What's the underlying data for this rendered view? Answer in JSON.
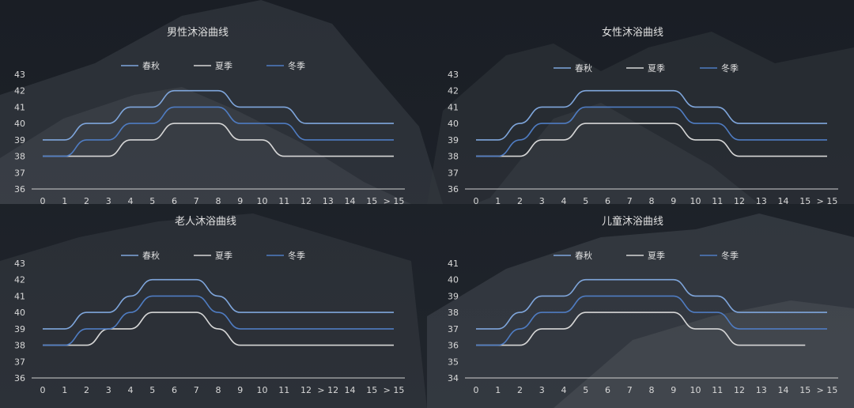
{
  "colors": {
    "background": "#1b1f26",
    "title": "#e0e0e0",
    "axis": "#d0d0d0",
    "tick_label": "#d8d8d8",
    "legend_text": "#e0e0e0"
  },
  "chart_data": [
    {
      "type": "line",
      "title": "男性沐浴曲线",
      "categories": [
        "0",
        "1",
        "2",
        "3",
        "4",
        "5",
        "6",
        "7",
        "8",
        "9",
        "10",
        "11",
        "12",
        "13",
        "14",
        "15",
        "> 15"
      ],
      "yticks": [
        36,
        37,
        38,
        39,
        40,
        41,
        42,
        43
      ],
      "ylim": [
        36,
        43
      ],
      "legend_position": "top-center",
      "grid": false,
      "series": [
        {
          "name": "春秋",
          "color": "#7fa6dc",
          "values": [
            39,
            39,
            40,
            40,
            41,
            41,
            42,
            42,
            42,
            41,
            41,
            41,
            40,
            40,
            40,
            40,
            40
          ]
        },
        {
          "name": "夏季",
          "color": "#d6d6d6",
          "values": [
            38,
            38,
            38,
            38,
            39,
            39,
            40,
            40,
            40,
            39,
            39,
            38,
            38,
            38,
            38,
            38,
            38
          ]
        },
        {
          "name": "冬季",
          "color": "#4f7cc2",
          "values": [
            38,
            38,
            39,
            39,
            40,
            40,
            41,
            41,
            41,
            40,
            40,
            40,
            39,
            39,
            39,
            39,
            39
          ]
        }
      ]
    },
    {
      "type": "line",
      "title": "女性沐浴曲线",
      "categories": [
        "0",
        "1",
        "2",
        "3",
        "4",
        "5",
        "6",
        "7",
        "8",
        "9",
        "10",
        "11",
        "12",
        "13",
        "14",
        "15",
        "> 15"
      ],
      "yticks": [
        36,
        37,
        38,
        39,
        40,
        41,
        42,
        43
      ],
      "ylim": [
        36,
        43
      ],
      "legend_position": "top-center",
      "grid": false,
      "series": [
        {
          "name": "春秋",
          "color": "#7fa6dc",
          "values": [
            39,
            39,
            40,
            41,
            41,
            42,
            42,
            42,
            42,
            42,
            41,
            41,
            40,
            40,
            40,
            40,
            40
          ]
        },
        {
          "name": "夏季",
          "color": "#d6d6d6",
          "values": [
            38,
            38,
            38,
            39,
            39,
            40,
            40,
            40,
            40,
            40,
            39,
            39,
            38,
            38,
            38,
            38,
            38
          ]
        },
        {
          "name": "冬季",
          "color": "#4f7cc2",
          "values": [
            38,
            38,
            39,
            40,
            40,
            41,
            41,
            41,
            41,
            41,
            40,
            40,
            39,
            39,
            39,
            39,
            39
          ]
        }
      ]
    },
    {
      "type": "line",
      "title": "老人沐浴曲线",
      "categories": [
        "0",
        "1",
        "2",
        "3",
        "4",
        "5",
        "6",
        "7",
        "8",
        "9",
        "10",
        "11",
        "12",
        "> 12",
        "14",
        "15",
        "> 15"
      ],
      "yticks": [
        36,
        37,
        38,
        39,
        40,
        41,
        42,
        43
      ],
      "ylim": [
        36,
        43
      ],
      "legend_position": "top-center",
      "grid": false,
      "series": [
        {
          "name": "春秋",
          "color": "#7fa6dc",
          "values": [
            39,
            39,
            40,
            40,
            41,
            42,
            42,
            42,
            41,
            40,
            40,
            40,
            40,
            40,
            40,
            40,
            40
          ]
        },
        {
          "name": "夏季",
          "color": "#d6d6d6",
          "values": [
            38,
            38,
            38,
            39,
            39,
            40,
            40,
            40,
            39,
            38,
            38,
            38,
            38,
            38,
            38,
            38,
            38
          ]
        },
        {
          "name": "冬季",
          "color": "#4f7cc2",
          "values": [
            38,
            38,
            39,
            39,
            40,
            41,
            41,
            41,
            40,
            39,
            39,
            39,
            39,
            39,
            39,
            39,
            39
          ]
        }
      ]
    },
    {
      "type": "line",
      "title": "儿童沐浴曲线",
      "categories": [
        "0",
        "1",
        "2",
        "3",
        "4",
        "5",
        "6",
        "7",
        "8",
        "9",
        "10",
        "11",
        "12",
        "13",
        "14",
        "15",
        "> 15"
      ],
      "yticks": [
        34,
        35,
        36,
        37,
        38,
        39,
        40,
        41
      ],
      "ylim": [
        34,
        41
      ],
      "legend_position": "top-center",
      "grid": false,
      "series": [
        {
          "name": "春秋",
          "color": "#7fa6dc",
          "values": [
            37,
            37,
            38,
            39,
            39,
            40,
            40,
            40,
            40,
            40,
            39,
            39,
            38,
            38,
            38,
            38,
            38
          ]
        },
        {
          "name": "夏季",
          "color": "#d6d6d6",
          "values": [
            36,
            36,
            36,
            37,
            37,
            38,
            38,
            38,
            38,
            38,
            37,
            37,
            36,
            36,
            36,
            36,
            null
          ]
        },
        {
          "name": "冬季",
          "color": "#4f7cc2",
          "values": [
            36,
            36,
            37,
            38,
            38,
            39,
            39,
            39,
            39,
            39,
            38,
            38,
            37,
            37,
            37,
            37,
            37
          ]
        }
      ]
    }
  ]
}
